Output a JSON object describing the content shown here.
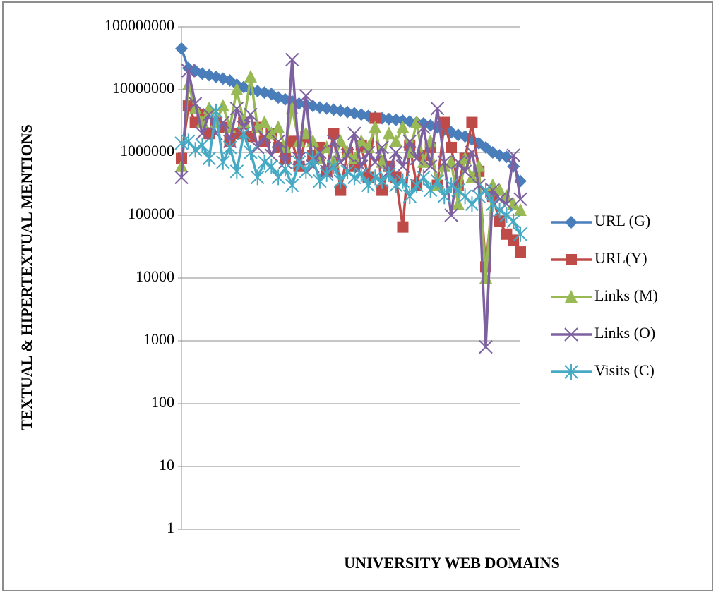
{
  "chart_data": {
    "type": "line",
    "y_label": "TEXTUAL & HIPERTEXTUAL MENTIONS",
    "x_label": "UNIVERSITY  WEB DOMAINS",
    "log_y": true,
    "grid": true,
    "legend": "right",
    "ylim": [
      1,
      100000000
    ],
    "yticks": [
      1,
      10,
      100,
      1000,
      10000,
      100000,
      1000000,
      10000000,
      100000000
    ],
    "categories": [
      null,
      null,
      null,
      null,
      null,
      null,
      null,
      null,
      null,
      null,
      null,
      null,
      null,
      null,
      null,
      null,
      null,
      null,
      null,
      null,
      null,
      null,
      null,
      null,
      null,
      null,
      null,
      null,
      null,
      null,
      null,
      null,
      null,
      null,
      null,
      null,
      null,
      null,
      null,
      null,
      null,
      null,
      null,
      null,
      null,
      null,
      null,
      null,
      null,
      null
    ],
    "series": [
      {
        "name": "URL (G)",
        "color": "#4a7ebb",
        "marker": "diamond",
        "values": [
          45000000,
          22000000,
          20000000,
          18000000,
          17000000,
          16000000,
          15000000,
          14000000,
          12000000,
          11000000,
          10000000,
          9500000,
          9000000,
          8500000,
          7500000,
          7000000,
          6500000,
          6000000,
          5800000,
          5500000,
          5200000,
          5000000,
          4800000,
          4600000,
          4400000,
          4200000,
          4000000,
          3800000,
          3600000,
          3500000,
          3400000,
          3300000,
          3200000,
          3100000,
          3000000,
          2900000,
          2700000,
          2500000,
          2300000,
          2100000,
          1900000,
          1800000,
          1600000,
          1400000,
          1200000,
          1000000,
          900000,
          850000,
          600000,
          350000
        ]
      },
      {
        "name": "URL(Y)",
        "color": "#be4b48",
        "marker": "square",
        "values": [
          800000,
          5500000,
          3000000,
          4000000,
          2000000,
          3000000,
          2500000,
          1500000,
          2000000,
          3000000,
          1800000,
          2500000,
          1500000,
          2000000,
          1200000,
          800000,
          1500000,
          600000,
          1800000,
          900000,
          1200000,
          500000,
          2000000,
          250000,
          1000000,
          600000,
          1300000,
          400000,
          3500000,
          250000,
          600000,
          400000,
          65000,
          1300000,
          300000,
          900000,
          1200000,
          300000,
          3000000,
          1200000,
          300000,
          800000,
          3000000,
          500000,
          15000,
          200000,
          80000,
          50000,
          40000,
          26000
        ]
      },
      {
        "name": "Links (M)",
        "color": "#98b954",
        "marker": "triangle",
        "values": [
          600000,
          12000000,
          5000000,
          3000000,
          5000000,
          3000000,
          5500000,
          2500000,
          10000000,
          3000000,
          16000000,
          2500000,
          3000000,
          2000000,
          2500000,
          1200000,
          5000000,
          1500000,
          2000000,
          1500000,
          800000,
          1200000,
          700000,
          1500000,
          1000000,
          800000,
          1500000,
          1200000,
          2500000,
          700000,
          2000000,
          1500000,
          2500000,
          1000000,
          3000000,
          700000,
          1500000,
          300000,
          600000,
          700000,
          150000,
          800000,
          400000,
          600000,
          10000,
          300000,
          250000,
          200000,
          150000,
          120000
        ]
      },
      {
        "name": "Links (O)",
        "color": "#7d60a0",
        "marker": "x",
        "values": [
          400000,
          20000000,
          6000000,
          2000000,
          4000000,
          2000000,
          3000000,
          1500000,
          5000000,
          2500000,
          4000000,
          1200000,
          1800000,
          900000,
          1500000,
          700000,
          30000000,
          800000,
          8000000,
          600000,
          1000000,
          500000,
          1500000,
          700000,
          900000,
          2000000,
          600000,
          1000000,
          700000,
          1200000,
          500000,
          1000000,
          600000,
          1500000,
          800000,
          2500000,
          600000,
          5000000,
          700000,
          100000,
          700000,
          500000,
          1000000,
          300000,
          800,
          250000,
          180000,
          150000,
          900000,
          180000
        ]
      },
      {
        "name": "Visits (C)",
        "color": "#46aac5",
        "marker": "star",
        "values": [
          1400000,
          1500000,
          1100000,
          1300000,
          800000,
          4500000,
          700000,
          1200000,
          500000,
          2000000,
          1000000,
          400000,
          700000,
          600000,
          400000,
          550000,
          300000,
          700000,
          500000,
          800000,
          350000,
          450000,
          600000,
          350000,
          500000,
          400000,
          450000,
          300000,
          400000,
          350000,
          450000,
          300000,
          350000,
          200000,
          300000,
          400000,
          250000,
          350000,
          200000,
          300000,
          250000,
          200000,
          150000,
          200000,
          250000,
          150000,
          120000,
          100000,
          80000,
          50000
        ]
      }
    ]
  }
}
